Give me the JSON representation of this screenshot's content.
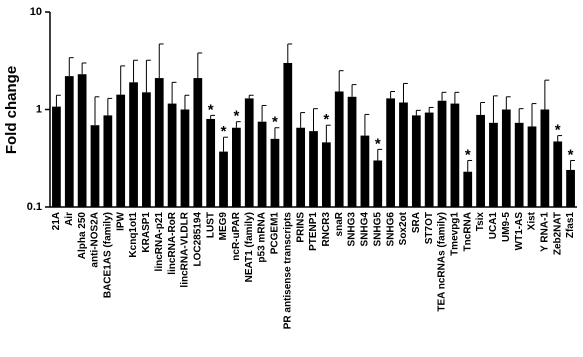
{
  "chart_data": {
    "type": "bar",
    "y_label": "Fold change",
    "log_scale": true,
    "color": "#000000",
    "ylim": [
      0.1,
      10
    ],
    "yticks": [
      0.1,
      1,
      10
    ],
    "categories": [
      "21A",
      "Air",
      "Alpha 250",
      "anti-NOS2A",
      "BACE1AS (family)",
      "IPW",
      "Kcnq1ot1",
      "KRASP1",
      "lincRNA-p21",
      "lincRNA-RoR",
      "lincRNA-VLDLR",
      "LOC285194",
      "LUST",
      "MEG9",
      "ncR-uPAR",
      "NEAT1 (family)",
      "p53 mRNA",
      "PCGEM1",
      "PR antisense transcripts",
      "PRINS",
      "PTENP1",
      "RNCR3",
      "snaR",
      "SNHG3",
      "SNHG4",
      "SNHG5",
      "SNHG6",
      "Sox2ot",
      "SRA",
      "ST7OT",
      "TEA ncRNAs (family)",
      "Tmevpg1",
      "TncRNA",
      "Tsix",
      "UCA1",
      "UM9-5",
      "WT1-AS",
      "Xist",
      "Y RNA-1",
      "Zeb2NAT",
      "Zfas1"
    ],
    "values": [
      1.07,
      2.2,
      2.3,
      0.69,
      0.87,
      1.42,
      1.9,
      1.5,
      2.1,
      1.15,
      1.0,
      2.1,
      0.8,
      0.37,
      0.65,
      1.3,
      0.75,
      0.5,
      3.0,
      0.65,
      0.6,
      0.46,
      1.53,
      1.35,
      0.54,
      0.3,
      1.3,
      1.18,
      0.87,
      0.93,
      1.23,
      1.15,
      0.23,
      0.88,
      0.73,
      1.0,
      0.73,
      0.67,
      1.0,
      0.47,
      0.24
    ],
    "errors": [
      0.33,
      1.2,
      0.7,
      0.66,
      0.43,
      1.38,
      1.3,
      1.7,
      2.6,
      0.75,
      0.4,
      1.7,
      0.07,
      0.15,
      0.1,
      0.1,
      0.35,
      0.15,
      1.7,
      0.28,
      0.42,
      0.23,
      0.97,
      0.45,
      0.35,
      0.09,
      0.23,
      0.67,
      0.11,
      0.12,
      0.27,
      0.35,
      0.07,
      0.3,
      0.65,
      0.35,
      0.29,
      0.48,
      1.0,
      0.07,
      0.06
    ],
    "markers": [
      null,
      null,
      null,
      null,
      null,
      null,
      null,
      null,
      null,
      null,
      null,
      null,
      "*",
      "*",
      "*",
      null,
      null,
      "*",
      null,
      null,
      null,
      "*",
      null,
      null,
      null,
      "*",
      null,
      null,
      null,
      null,
      null,
      null,
      "*",
      null,
      null,
      null,
      null,
      null,
      null,
      "*",
      "*"
    ]
  }
}
